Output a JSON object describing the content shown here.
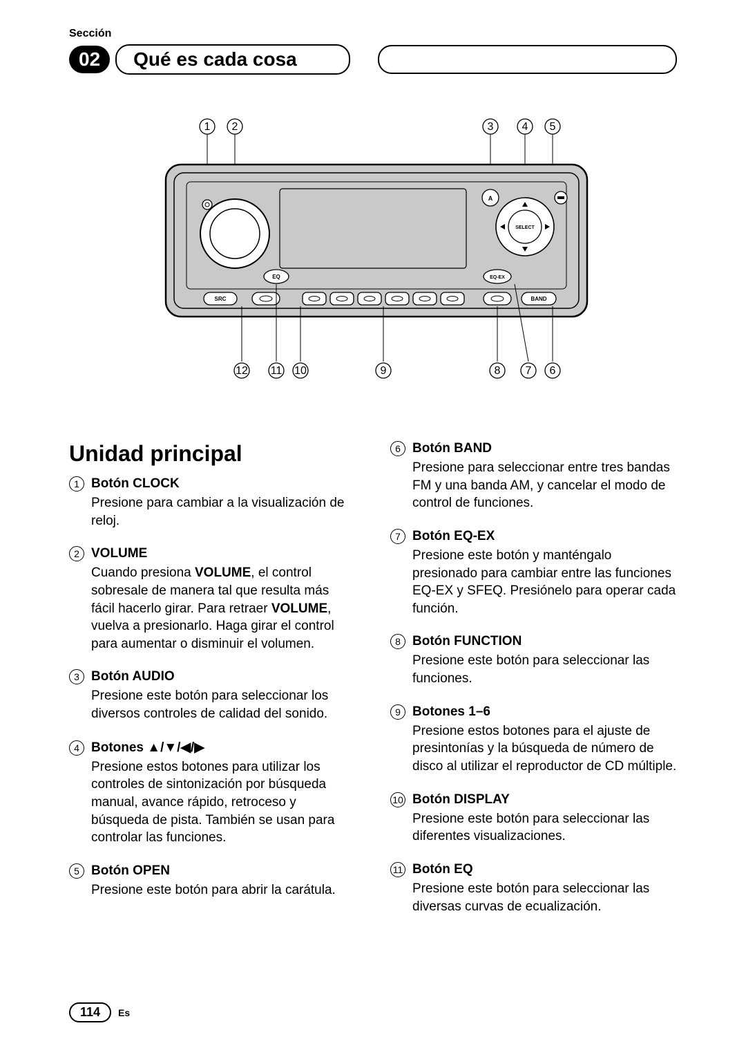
{
  "section_label": "Sección",
  "section_number": "02",
  "section_title": "Qué es cada cosa",
  "diagram": {
    "top_callouts": [
      "1",
      "2",
      "3",
      "4",
      "5"
    ],
    "bottom_callouts": [
      "12",
      "11",
      "10",
      "9",
      "8",
      "7",
      "6"
    ],
    "labels": {
      "select": "SELECT",
      "a": "A",
      "eq": "EQ",
      "eqex": "EQ-EX",
      "src": "SRC",
      "band": "BAND"
    }
  },
  "main_title": "Unidad principal",
  "items_left": [
    {
      "num": "1",
      "title": "Botón CLOCK",
      "body": "Presione para cambiar a la visualización de reloj."
    },
    {
      "num": "2",
      "title": "VOLUME",
      "body": "Cuando presiona <b>VOLUME</b>, el control sobresale de manera tal que resulta más fácil hacerlo girar. Para retraer <b>VOLUME</b>, vuelva a presionarlo. Haga girar el control para aumentar o disminuir el volumen."
    },
    {
      "num": "3",
      "title": "Botón AUDIO",
      "body": "Presione este botón para seleccionar los diversos controles de calidad del sonido."
    },
    {
      "num": "4",
      "title": "Botones ▲/▼/◀/▶",
      "body": "Presione estos botones para utilizar los controles de sintonización por búsqueda manual, avance rápido, retroceso y búsqueda de pista. También se usan para controlar las funciones."
    },
    {
      "num": "5",
      "title": "Botón OPEN",
      "body": "Presione este botón para abrir la carátula."
    }
  ],
  "items_right": [
    {
      "num": "6",
      "title": "Botón BAND",
      "body": "Presione para seleccionar entre tres bandas FM y una banda AM, y cancelar el modo de control de funciones."
    },
    {
      "num": "7",
      "title": "Botón EQ-EX",
      "body": "Presione este botón y manténgalo presionado para cambiar entre las funciones EQ-EX y SFEQ. Presiónelo para operar cada función."
    },
    {
      "num": "8",
      "title": "Botón FUNCTION",
      "body": "Presione este botón para seleccionar las funciones."
    },
    {
      "num": "9",
      "title": "Botones 1–6",
      "body": "Presione estos botones para el ajuste de presintonías y la búsqueda de número de disco al utilizar el reproductor de CD múltiple."
    },
    {
      "num": "10",
      "title": "Botón DISPLAY",
      "body": "Presione este botón para seleccionar las diferentes visualizaciones."
    },
    {
      "num": "11",
      "title": "Botón EQ",
      "body": "Presione este botón para seleccionar las diversas curvas de ecualización."
    }
  ],
  "page_number": "114",
  "lang": "Es"
}
